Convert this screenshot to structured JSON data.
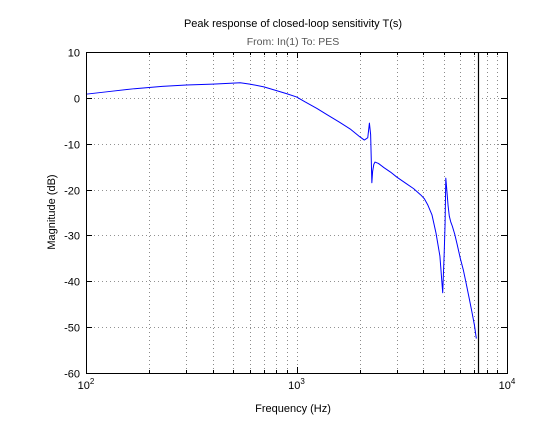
{
  "chart_data": {
    "type": "line",
    "title": "Peak response of closed-loop sensitivity T(s)",
    "subtitle": "From: In(1)  To: PES",
    "xlabel": "Frequency  (Hz)",
    "ylabel": "Magnitude (dB)",
    "xscale": "log",
    "xlim": [
      100,
      10000
    ],
    "ylim": [
      -60,
      10
    ],
    "grid": true,
    "xtick_labels": [
      {
        "base": "10",
        "exp": "2",
        "value": 100
      },
      {
        "base": "10",
        "exp": "3",
        "value": 1000
      },
      {
        "base": "10",
        "exp": "4",
        "value": 10000
      }
    ],
    "yticks": [
      10,
      0,
      -10,
      -20,
      -30,
      -40,
      -50,
      -60
    ],
    "marker_line": {
      "x": 7250,
      "color": "#000000"
    },
    "series": [
      {
        "color": "#0000ff",
        "x": [
          100,
          130,
          170,
          230,
          300,
          400,
          500,
          540,
          600,
          700,
          800,
          900,
          1000,
          1100,
          1250,
          1400,
          1600,
          1800,
          2000,
          2100,
          2180,
          2220,
          2250,
          2280,
          2300,
          2330,
          2360,
          2450,
          2600,
          2800,
          3000,
          3300,
          3600,
          3900,
          4050,
          4200,
          4400,
          4600,
          4800,
          4950,
          5030,
          5080,
          5120,
          5170,
          5250,
          5320,
          5400,
          5500,
          5650,
          5800,
          6000,
          6200,
          6400,
          6600,
          6800,
          7000,
          7100,
          7150
        ],
        "y": [
          0.8,
          1.4,
          2.0,
          2.5,
          2.8,
          3.0,
          3.2,
          3.3,
          3.0,
          2.4,
          1.6,
          0.9,
          0.2,
          -0.9,
          -2.3,
          -3.7,
          -5.3,
          -6.8,
          -8.5,
          -9.2,
          -8.7,
          -5.5,
          -8.0,
          -18.5,
          -16.0,
          -14.5,
          -14.0,
          -14.3,
          -15.2,
          -16.2,
          -17.3,
          -18.6,
          -19.8,
          -21.2,
          -22.0,
          -23.3,
          -25.5,
          -29.5,
          -34.5,
          -42.5,
          -34.0,
          -27.5,
          -17.5,
          -19.8,
          -23.5,
          -25.8,
          -27.0,
          -28.0,
          -29.8,
          -32.0,
          -35.0,
          -37.5,
          -40.5,
          -43.5,
          -46.5,
          -49.5,
          -51.5,
          -52.5
        ]
      }
    ]
  }
}
